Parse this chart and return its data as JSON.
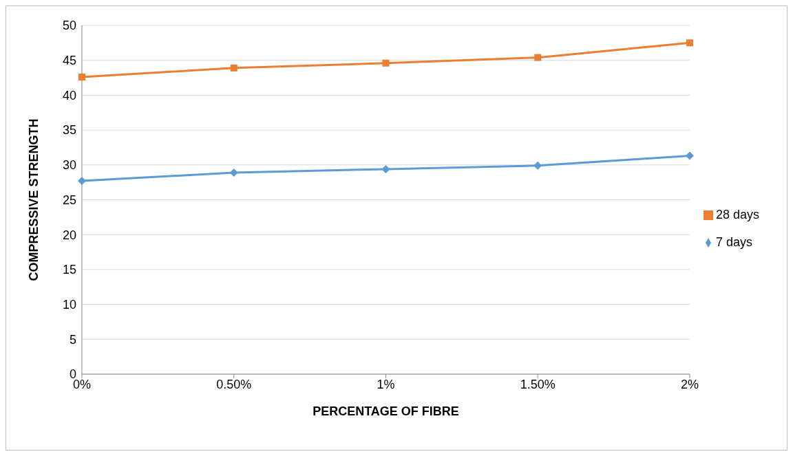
{
  "chart_data": {
    "type": "line",
    "xlabel": "PERCENTAGE OF FIBRE",
    "ylabel": "COMPRESSIVE STRENGTH",
    "categories": [
      "0%",
      "0.50%",
      "1%",
      "1.50%",
      "2%"
    ],
    "series": [
      {
        "name": "28 days",
        "color": "#ed7d31",
        "marker": "square",
        "values": [
          42.6,
          43.9,
          44.6,
          45.4,
          47.5
        ]
      },
      {
        "name": "7 days",
        "color": "#5b9bd5",
        "marker": "diamond",
        "values": [
          27.7,
          28.9,
          29.4,
          29.9,
          31.3
        ]
      }
    ],
    "ylim": [
      0,
      50
    ],
    "yticks": [
      0,
      5,
      10,
      15,
      20,
      25,
      30,
      35,
      40,
      45,
      50
    ],
    "grid": "y",
    "legend": "right"
  }
}
